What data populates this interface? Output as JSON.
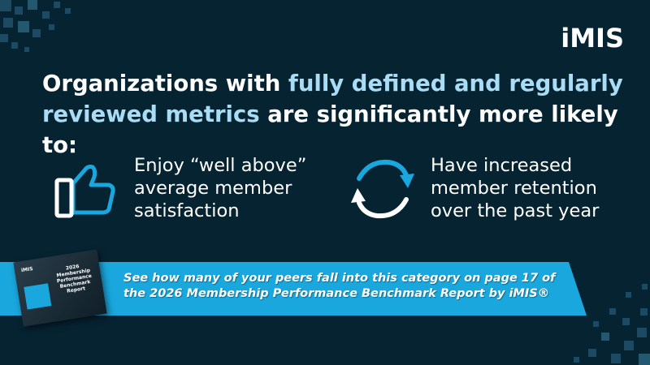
{
  "logo": "iMIS",
  "headline": {
    "part1": "Organizations with ",
    "highlight": "fully defined and regularly reviewed metrics",
    "part2": " are significantly more likely to:"
  },
  "benefits": [
    {
      "icon": "thumbs-up-icon",
      "lines": [
        "Enjoy “well above”",
        "average member",
        "satisfaction"
      ]
    },
    {
      "icon": "refresh-cycle-icon",
      "lines": [
        "Have increased",
        "member retention",
        "over the past year"
      ]
    }
  ],
  "banner": {
    "line1": "See how many of your peers fall into this category on page 17 of",
    "line2": "the 2026 Membership Performance Benchmark Report by iMIS®"
  },
  "book_cover": {
    "logo": "iMIS",
    "title": "2026 Membership Performance Benchmark Report"
  },
  "colors": {
    "background": "#062332",
    "accent": "#1aa7dd",
    "highlight": "#a9dcf5"
  }
}
